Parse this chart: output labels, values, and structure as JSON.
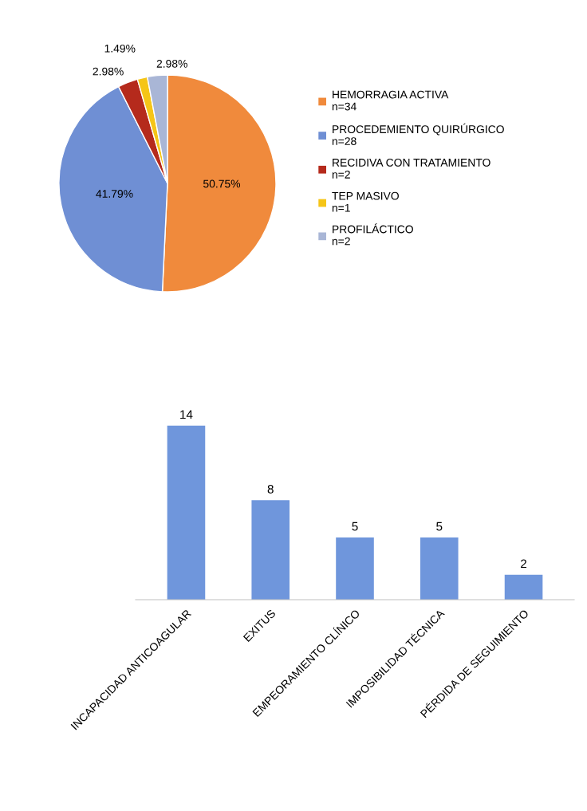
{
  "chart_data": [
    {
      "type": "pie",
      "categories": [
        "HEMORRAGIA ACTIVA\nn=34",
        "PROCEDEMIENTO QUIRÚRGICO\nn=28",
        "RECIDIVA CON TRATAMIENTO\nn=2",
        "TEP MASIVO\nn=1",
        "PROFILÁCTICO\nn=2"
      ],
      "values": [
        50.75,
        41.79,
        2.98,
        1.49,
        2.98
      ],
      "colors": [
        "#f08a3c",
        "#6f8fd4",
        "#b52a1c",
        "#f5c518",
        "#a9b6d6"
      ],
      "value_labels": [
        "50.75%",
        "41.79%",
        "2.98%",
        "1.49%",
        "2.98%"
      ],
      "legend": "right"
    },
    {
      "type": "bar",
      "categories": [
        "INCAPACIDAD ANTICOAGULAR",
        "EXITUS",
        "EMPEORAMIENTO CLÍNICO",
        "IMPOSIBILIDAD TÉCNICA",
        "PÉRDIDA DE SEGUIMIENTO"
      ],
      "values": [
        14,
        8,
        5,
        5,
        2
      ],
      "color": "#6f96dc",
      "data_labels": true
    }
  ]
}
